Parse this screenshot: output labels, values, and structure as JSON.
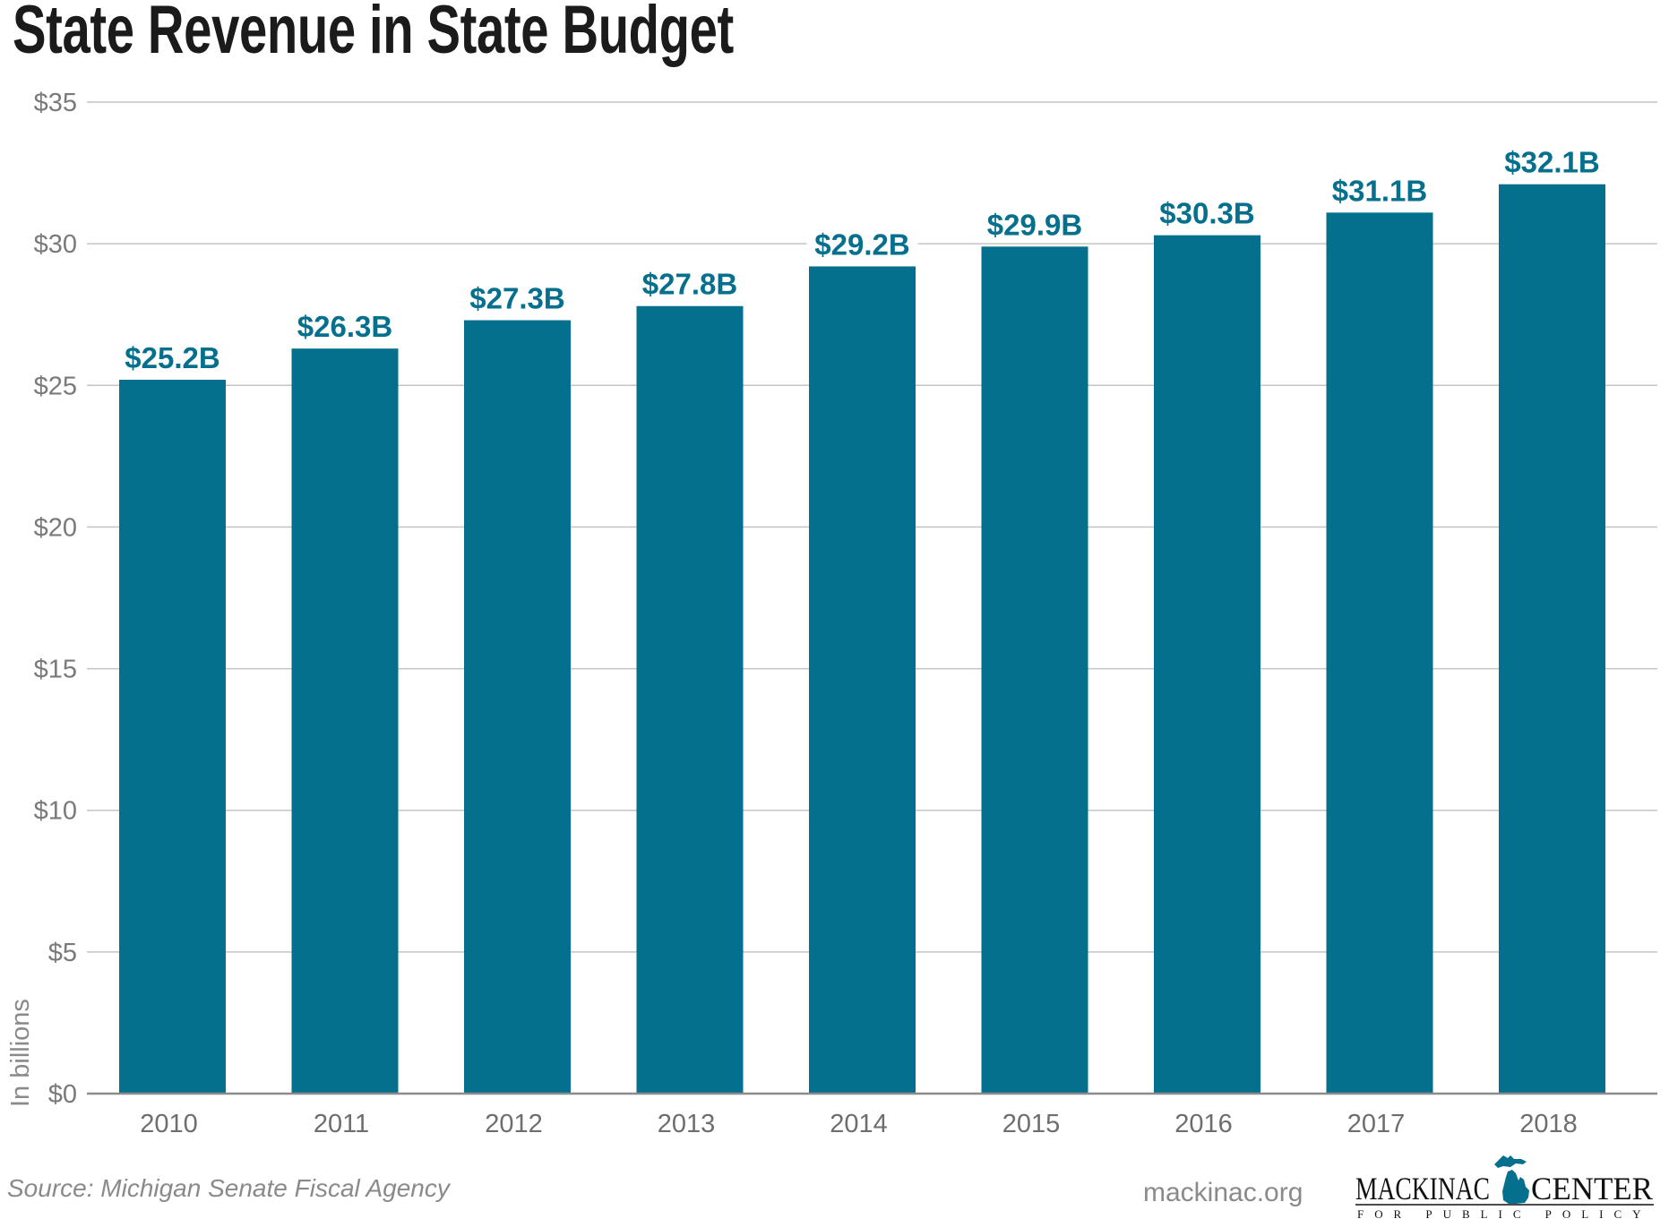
{
  "header": {
    "title": "State Revenue in State Budget"
  },
  "chart_data": {
    "type": "bar",
    "title": "State Revenue in State Budget",
    "xlabel": "",
    "ylabel": "In billions",
    "categories": [
      "2010",
      "2011",
      "2012",
      "2013",
      "2014",
      "2015",
      "2016",
      "2017",
      "2018"
    ],
    "values": [
      25.2,
      26.3,
      27.3,
      27.8,
      29.2,
      29.9,
      30.3,
      31.1,
      32.1
    ],
    "data_labels": [
      "$25.2B",
      "$26.3B",
      "$27.3B",
      "$27.8B",
      "$29.2B",
      "$29.9B",
      "$30.3B",
      "$31.1B",
      "$32.1B"
    ],
    "ylim": [
      0,
      35
    ],
    "yticks": [
      0,
      5,
      10,
      15,
      20,
      25,
      30,
      35
    ],
    "ytick_labels": [
      "$0",
      "$5",
      "$10",
      "$15",
      "$20",
      "$25",
      "$30",
      "$35"
    ],
    "grid": true,
    "legend": "none",
    "bar_color": "#05708e",
    "label_color": "#05708e"
  },
  "footer": {
    "source": "Source: Michigan Senate Fiscal Agency",
    "website": "mackinac.org",
    "logo_name_left": "MACKINAC",
    "logo_name_right": "CENTER",
    "logo_tagline": "FOR PUBLIC POLICY",
    "logo_color": "#05708e"
  }
}
